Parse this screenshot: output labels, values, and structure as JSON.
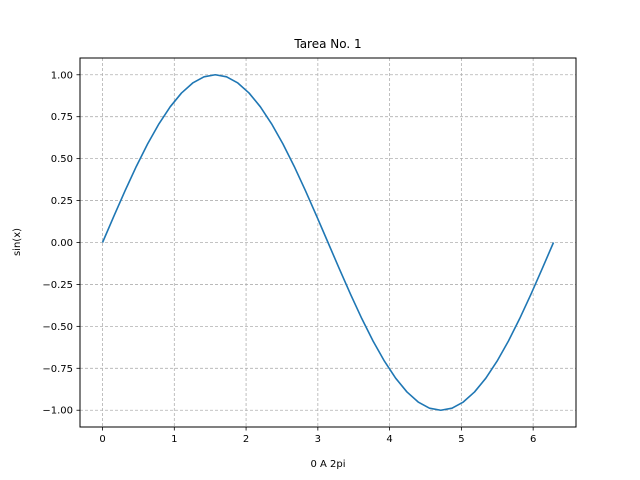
{
  "chart_data": {
    "type": "line",
    "title": "Tarea No. 1",
    "xlabel": "0 A 2pi",
    "ylabel": "sin(x)",
    "xlim": [
      -0.314,
      6.597
    ],
    "ylim": [
      -1.1,
      1.1
    ],
    "xticks": [
      0,
      1,
      2,
      3,
      4,
      5,
      6
    ],
    "xtick_labels": [
      "0",
      "1",
      "2",
      "3",
      "4",
      "5",
      "6"
    ],
    "yticks": [
      -1.0,
      -0.75,
      -0.5,
      -0.25,
      0.0,
      0.25,
      0.5,
      0.75,
      1.0
    ],
    "ytick_labels": [
      "−1.00",
      "−0.75",
      "−0.50",
      "−0.25",
      "0.00",
      "0.25",
      "0.50",
      "0.75",
      "1.00"
    ],
    "grid": true,
    "grid_style": "dashed",
    "colors": {
      "line": "#1f77b4",
      "grid": "#b0b0b0",
      "axes": "#000000"
    },
    "series": [
      {
        "x": [
          0,
          0.1571,
          0.3142,
          0.4712,
          0.6283,
          0.7854,
          0.9425,
          1.0996,
          1.2566,
          1.4137,
          1.5708,
          1.7279,
          1.885,
          2.042,
          2.1991,
          2.3562,
          2.5133,
          2.6704,
          2.8274,
          2.9845,
          3.1416,
          3.2987,
          3.4558,
          3.6128,
          3.7699,
          3.927,
          4.0841,
          4.2412,
          4.3982,
          4.5553,
          4.7124,
          4.8695,
          5.0265,
          5.1836,
          5.3407,
          5.4978,
          5.6549,
          5.8119,
          5.969,
          6.1261,
          6.2832
        ],
        "y": [
          0,
          0.1564,
          0.309,
          0.454,
          0.5878,
          0.7071,
          0.809,
          0.891,
          0.9511,
          0.9877,
          1.0,
          0.9877,
          0.9511,
          0.891,
          0.809,
          0.7071,
          0.5878,
          0.454,
          0.309,
          0.1564,
          0,
          -0.1564,
          -0.309,
          -0.454,
          -0.5878,
          -0.7071,
          -0.809,
          -0.891,
          -0.9511,
          -0.9877,
          -1.0,
          -0.9877,
          -0.9511,
          -0.891,
          -0.809,
          -0.7071,
          -0.5878,
          -0.454,
          -0.309,
          -0.1564,
          0
        ]
      }
    ]
  }
}
